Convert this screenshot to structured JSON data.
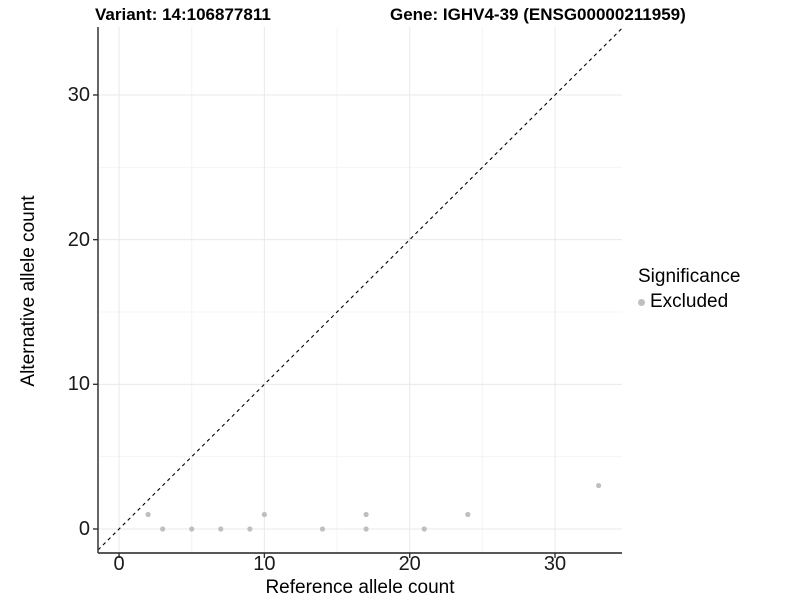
{
  "header": {
    "title_left": "Variant: 14:106877811",
    "title_right": "Gene: IGHV4-39 (ENSG00000211959)"
  },
  "chart_data": {
    "type": "scatter",
    "title_left": "Variant: 14:106877811",
    "title_right": "Gene: IGHV4-39 (ENSG00000211959)",
    "xlabel": "Reference allele count",
    "ylabel": "Alternative allele count",
    "xlim": [
      -1.45,
      34.61
    ],
    "ylim": [
      -1.66,
      34.7
    ],
    "x_ticks": [
      0,
      10,
      20,
      30
    ],
    "y_ticks": [
      0,
      10,
      20,
      30
    ],
    "x_minor_ticks": [
      5,
      15,
      25
    ],
    "y_minor_ticks": [
      5,
      15,
      25
    ],
    "grid": true,
    "identity_line": {
      "equation": "y = x",
      "style": "dashed",
      "color": "#000000"
    },
    "series": [
      {
        "name": "Excluded",
        "color": "#bfbfbf",
        "points": [
          [
            2,
            1
          ],
          [
            3,
            0
          ],
          [
            5,
            0
          ],
          [
            7,
            0
          ],
          [
            9,
            0
          ],
          [
            10,
            1
          ],
          [
            14,
            0
          ],
          [
            17,
            0
          ],
          [
            17,
            1
          ],
          [
            21,
            0
          ],
          [
            24,
            1
          ],
          [
            33,
            3
          ]
        ]
      }
    ],
    "legend": {
      "title": "Significance",
      "position": "right",
      "items": [
        {
          "label": "Excluded",
          "color": "#bfbfbf"
        }
      ]
    },
    "style": {
      "point_color": "#bfbfbf",
      "grid_major_color": "#e9e9e9",
      "grid_minor_color": "#f4f4f4",
      "axis_line_color": "#404040",
      "tick_mark_color": "#333333",
      "text_color": "#000000"
    }
  }
}
